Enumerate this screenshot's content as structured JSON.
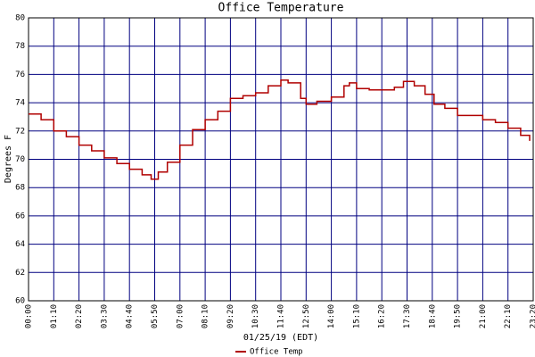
{
  "chart_data": {
    "type": "line",
    "title": "Office Temperature",
    "y_label": "Degrees F",
    "x_label": "01/25/19 (EDT)",
    "x": [
      0,
      35,
      70,
      105,
      140,
      175,
      210,
      245,
      280,
      315,
      340,
      360,
      385,
      420,
      455,
      490,
      525,
      560,
      595,
      630,
      665,
      700,
      720,
      755,
      770,
      800,
      840,
      875,
      890,
      910,
      945,
      980,
      1015,
      1040,
      1070,
      1100,
      1125,
      1155,
      1190,
      1225,
      1260,
      1295,
      1330,
      1365,
      1390
    ],
    "series": [
      {
        "name": "Office Temp",
        "color": "#b00000",
        "values": [
          73.2,
          72.8,
          72.0,
          71.6,
          71.0,
          70.6,
          70.1,
          69.7,
          69.3,
          68.9,
          68.6,
          69.1,
          69.8,
          71.0,
          72.1,
          72.8,
          73.4,
          74.3,
          74.5,
          74.7,
          75.2,
          75.6,
          75.4,
          74.3,
          73.9,
          74.1,
          74.4,
          75.2,
          75.4,
          75.0,
          74.9,
          74.9,
          75.1,
          75.5,
          75.2,
          74.6,
          73.9,
          73.6,
          73.1,
          73.1,
          72.8,
          72.6,
          72.2,
          71.7,
          71.3
        ]
      }
    ],
    "xlim": [
      0,
      1400
    ],
    "xticks": [
      {
        "value": 0,
        "label": "00:00"
      },
      {
        "value": 70,
        "label": "01:10"
      },
      {
        "value": 140,
        "label": "02:20"
      },
      {
        "value": 210,
        "label": "03:30"
      },
      {
        "value": 280,
        "label": "04:40"
      },
      {
        "value": 350,
        "label": "05:50"
      },
      {
        "value": 420,
        "label": "07:00"
      },
      {
        "value": 490,
        "label": "08:10"
      },
      {
        "value": 560,
        "label": "09:20"
      },
      {
        "value": 630,
        "label": "10:30"
      },
      {
        "value": 700,
        "label": "11:40"
      },
      {
        "value": 770,
        "label": "12:50"
      },
      {
        "value": 840,
        "label": "14:00"
      },
      {
        "value": 910,
        "label": "15:10"
      },
      {
        "value": 980,
        "label": "16:20"
      },
      {
        "value": 1050,
        "label": "17:30"
      },
      {
        "value": 1120,
        "label": "18:40"
      },
      {
        "value": 1190,
        "label": "19:50"
      },
      {
        "value": 1260,
        "label": "21:00"
      },
      {
        "value": 1330,
        "label": "22:10"
      },
      {
        "value": 1400,
        "label": "23:20"
      }
    ],
    "ylim": [
      60,
      80
    ],
    "yticks": [
      60,
      62,
      64,
      66,
      68,
      70,
      72,
      74,
      76,
      78,
      80
    ],
    "grid": true,
    "grid_color": "#000080"
  }
}
